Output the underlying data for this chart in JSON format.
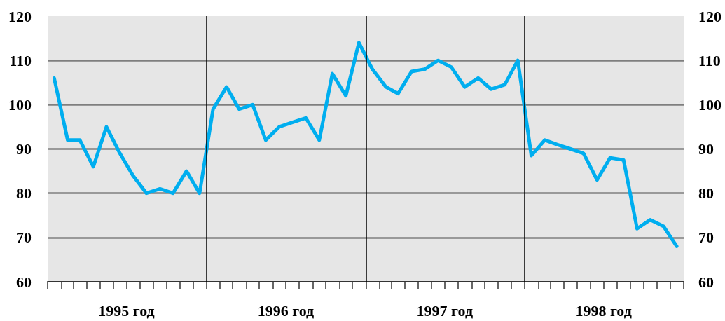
{
  "chart_data": {
    "type": "line",
    "x": [
      "1995-01-16",
      "1995-02-16",
      "1995-03-16",
      "1995-04-16",
      "1995-05-16",
      "1995-06-16",
      "1995-07-16",
      "1995-08-16",
      "1995-09-16",
      "1995-10-16",
      "1995-11-16",
      "1995-12-16",
      "1996-01-16",
      "1996-02-16",
      "1996-03-16",
      "1996-04-16",
      "1996-05-16",
      "1996-06-16",
      "1996-07-16",
      "1996-08-16",
      "1996-09-16",
      "1996-10-16",
      "1996-11-16",
      "1996-12-16",
      "1997-01-16",
      "1997-02-16",
      "1997-03-16",
      "1997-04-16",
      "1997-05-16",
      "1997-06-16",
      "1997-07-16",
      "1997-08-16",
      "1997-09-16",
      "1997-10-16",
      "1997-11-16",
      "1997-12-16",
      "1998-01-16",
      "1998-02-16",
      "1998-03-16",
      "1998-04-16",
      "1998-05-16",
      "1998-06-16",
      "1998-07-16",
      "1998-08-16",
      "1998-09-16",
      "1998-10-16",
      "1998-11-16",
      "1998-12-16"
    ],
    "values": [
      106,
      92,
      92,
      86,
      95,
      89,
      84,
      80,
      81,
      80,
      85,
      80,
      99,
      104,
      99,
      100,
      92,
      95,
      96,
      97,
      92,
      107,
      102,
      114,
      108,
      104,
      102.5,
      107.5,
      108,
      110,
      108.5,
      104,
      106,
      103.5,
      104.5,
      110,
      88.5,
      92,
      91,
      90,
      89,
      83,
      88,
      87.5,
      72,
      74,
      72.5,
      68
    ],
    "color": "#00aeef",
    "xlim": [
      "1995-01-01",
      "1999-01-01"
    ],
    "xticks": [
      {
        "value": "1995-01-01",
        "label": null
      },
      {
        "value": "1995-02-01",
        "label": null
      },
      {
        "value": "1995-03-01",
        "label": null
      },
      {
        "value": "1995-04-01",
        "label": null
      },
      {
        "value": "1995-05-01",
        "label": null
      },
      {
        "value": "1995-06-01",
        "label": null
      },
      {
        "value": "1995-07-01",
        "label": "1995 год"
      },
      {
        "value": "1995-08-01",
        "label": null
      },
      {
        "value": "1995-09-01",
        "label": null
      },
      {
        "value": "1995-10-01",
        "label": null
      },
      {
        "value": "1995-11-01",
        "label": null
      },
      {
        "value": "1995-12-01",
        "label": null
      },
      {
        "value": "1996-01-01",
        "label": null
      },
      {
        "value": "1996-02-01",
        "label": null
      },
      {
        "value": "1996-03-01",
        "label": null
      },
      {
        "value": "1996-04-01",
        "label": null
      },
      {
        "value": "1996-05-01",
        "label": null
      },
      {
        "value": "1996-06-01",
        "label": null
      },
      {
        "value": "1996-07-01",
        "label": "1996 год"
      },
      {
        "value": "1996-08-01",
        "label": null
      },
      {
        "value": "1996-09-01",
        "label": null
      },
      {
        "value": "1996-10-01",
        "label": null
      },
      {
        "value": "1996-11-01",
        "label": null
      },
      {
        "value": "1996-12-01",
        "label": null
      },
      {
        "value": "1997-01-01",
        "label": null
      },
      {
        "value": "1997-02-01",
        "label": null
      },
      {
        "value": "1997-03-01",
        "label": null
      },
      {
        "value": "1997-04-01",
        "label": null
      },
      {
        "value": "1997-05-01",
        "label": null
      },
      {
        "value": "1997-06-01",
        "label": null
      },
      {
        "value": "1997-07-01",
        "label": "1997 год"
      },
      {
        "value": "1997-08-01",
        "label": null
      },
      {
        "value": "1997-09-01",
        "label": null
      },
      {
        "value": "1997-10-01",
        "label": null
      },
      {
        "value": "1997-11-01",
        "label": null
      },
      {
        "value": "1997-12-01",
        "label": null
      },
      {
        "value": "1998-01-01",
        "label": null
      },
      {
        "value": "1998-02-01",
        "label": null
      },
      {
        "value": "1998-03-01",
        "label": null
      },
      {
        "value": "1998-04-01",
        "label": null
      },
      {
        "value": "1998-05-01",
        "label": null
      },
      {
        "value": "1998-06-01",
        "label": null
      },
      {
        "value": "1998-07-01",
        "label": "1998 год"
      },
      {
        "value": "1998-08-01",
        "label": null
      },
      {
        "value": "1998-09-01",
        "label": null
      },
      {
        "value": "1998-10-01",
        "label": null
      },
      {
        "value": "1998-11-01",
        "label": null
      },
      {
        "value": "1998-12-01",
        "label": null
      },
      {
        "value": "1999-01-01",
        "label": null
      }
    ],
    "ylim": [
      60,
      120
    ],
    "yticks": [
      60,
      70,
      80,
      90,
      100,
      110,
      120
    ],
    "y2lim": [
      60,
      120
    ],
    "y2ticks": [
      60,
      70,
      80,
      90,
      100,
      110,
      120
    ],
    "grid": "y",
    "ref_lines": [
      {
        "axis": "x",
        "value": "1996-01-01",
        "color": "#000000"
      },
      {
        "axis": "x",
        "value": "1997-01-01",
        "color": "#000000"
      },
      {
        "axis": "x",
        "value": "1998-01-01",
        "color": "#000000"
      }
    ]
  }
}
